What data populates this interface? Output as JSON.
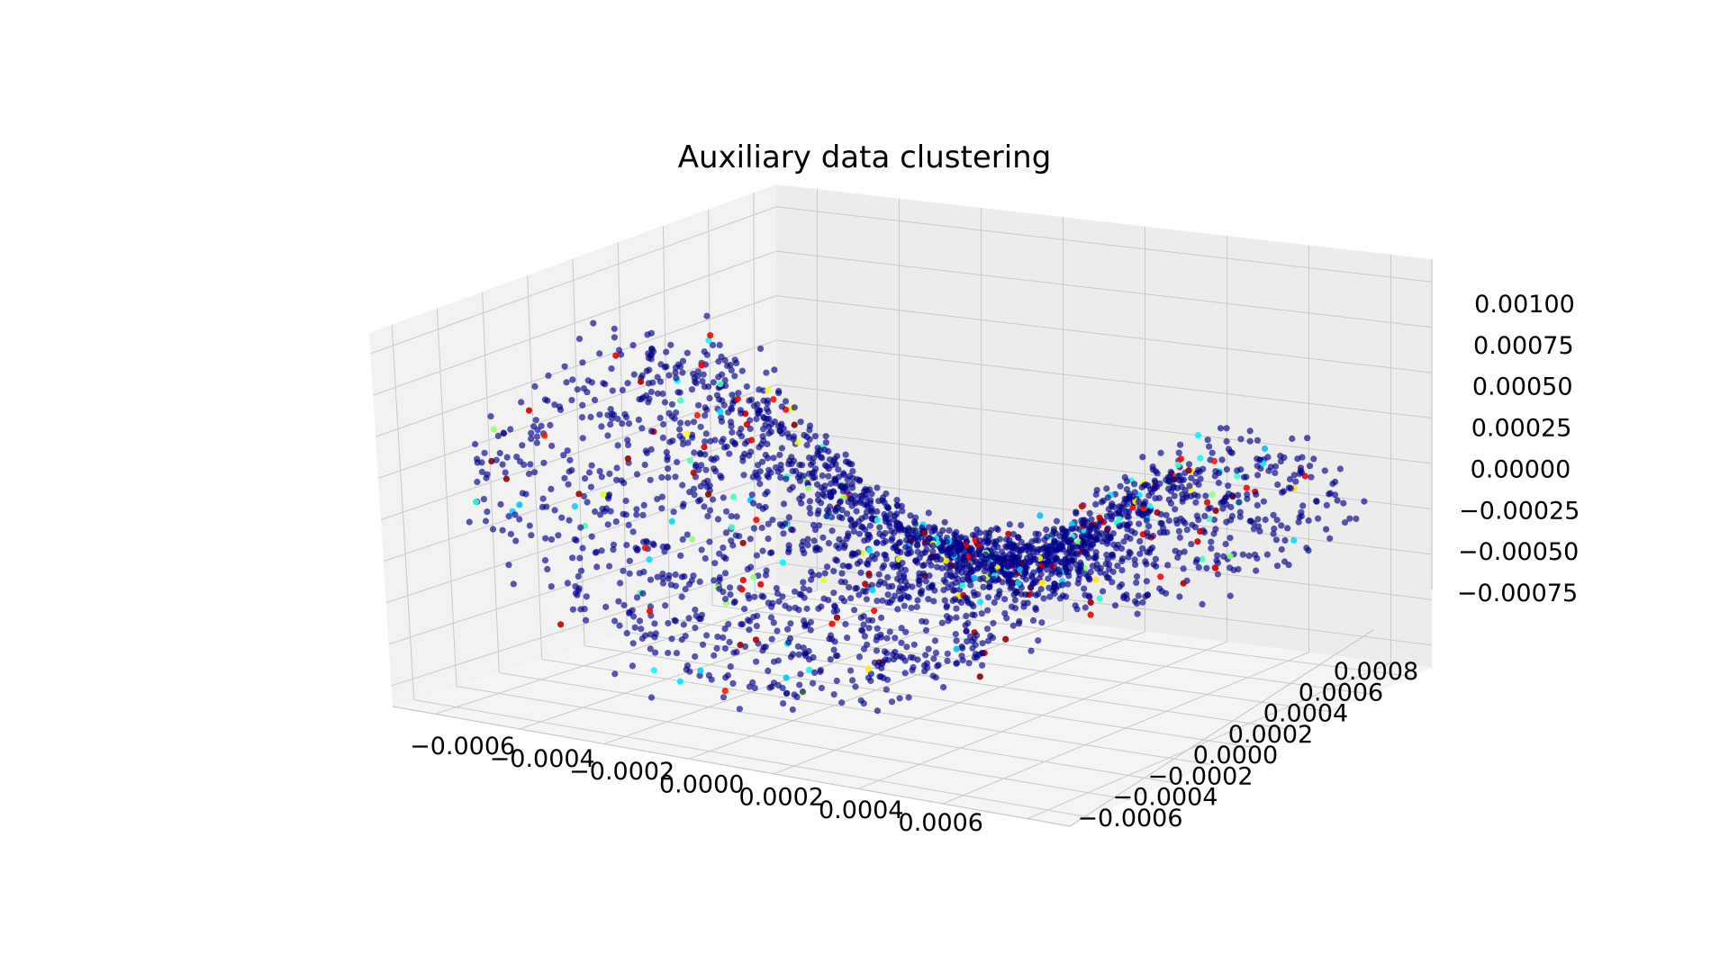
{
  "chart_data": {
    "type": "scatter",
    "projection": "3d",
    "title": "Auxiliary data clustering",
    "xlabel": "",
    "ylabel": "",
    "zlabel": "",
    "grid": true,
    "legend": "none",
    "xlim": [
      -0.0007,
      0.0007
    ],
    "ylim": [
      -0.0007,
      0.0009
    ],
    "zlim": [
      -0.001,
      0.0011
    ],
    "x_ticks": [
      "−0.0006",
      "−0.0004",
      "−0.0002",
      "0.0000",
      "0.0002",
      "0.0004",
      "0.0006"
    ],
    "y_ticks": [
      "−0.0006",
      "−0.0004",
      "−0.0002",
      "0.0000",
      "0.0002",
      "0.0004",
      "0.0006",
      "0.0008"
    ],
    "z_ticks": [
      "−0.00075",
      "−0.00050",
      "−0.00025",
      "0.00000",
      "0.00025",
      "0.00050",
      "0.00075",
      "0.00100"
    ],
    "colormap": "jet",
    "colors": {
      "dominant": "#00008b",
      "pane_left": "#f2f2f2",
      "pane_back": "#ececec",
      "pane_floor": "#f5f5f5",
      "grid": "#c8c8c8"
    },
    "surface_shape": "curved saddle-like sheet, x in [-0.0006, 0.0006], y in [-0.0006, 0.0008]",
    "point_count_approx": 10000
  }
}
